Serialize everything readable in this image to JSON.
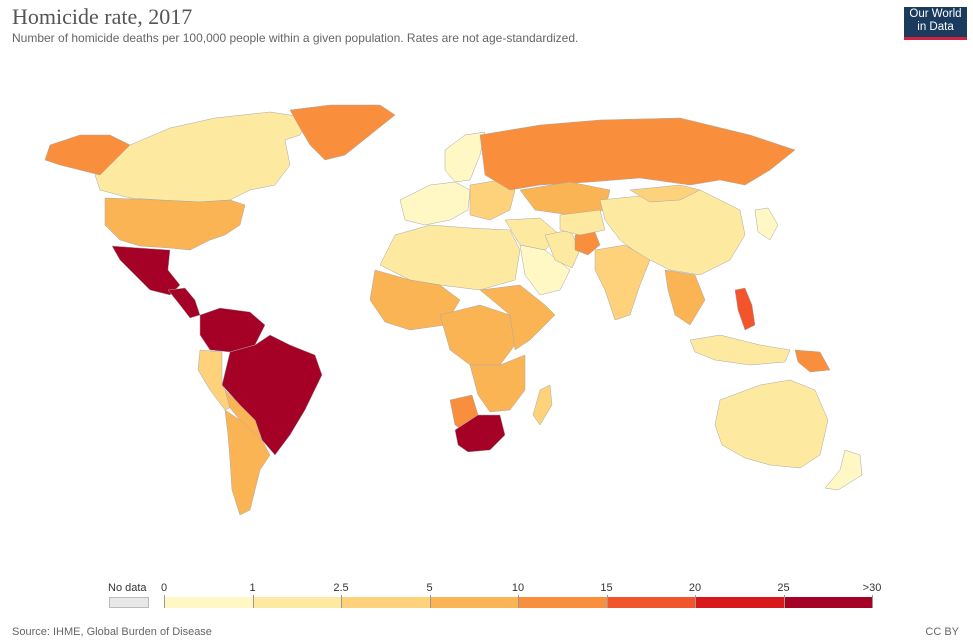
{
  "header": {
    "title": "Homicide rate, 2017",
    "subtitle": "Number of homicide deaths per 100,000 people within a given population. Rates are not age-standardized."
  },
  "logo": {
    "line1": "Our World",
    "line2": "in Data"
  },
  "legend": {
    "no_data_label": "No data",
    "no_data_color": "#e8e8e8",
    "ticks": [
      "0",
      "1",
      "2.5",
      "5",
      "10",
      "15",
      "20",
      "25",
      ">30"
    ],
    "bins": [
      {
        "color": "#fff7c4"
      },
      {
        "color": "#fee9a0"
      },
      {
        "color": "#fdd27a"
      },
      {
        "color": "#fbb454"
      },
      {
        "color": "#f98f3c"
      },
      {
        "color": "#f2552b"
      },
      {
        "color": "#d7191c"
      },
      {
        "color": "#a50026"
      }
    ]
  },
  "regions": [
    {
      "name": "Canada",
      "bin": 1
    },
    {
      "name": "Alaska",
      "bin": 4
    },
    {
      "name": "Greenland",
      "bin": 4
    },
    {
      "name": "United States",
      "bin": 3
    },
    {
      "name": "Mexico",
      "bin": 7
    },
    {
      "name": "Central America",
      "bin": 7
    },
    {
      "name": "Venezuela / Colombia",
      "bin": 7
    },
    {
      "name": "Brazil",
      "bin": 7
    },
    {
      "name": "Peru",
      "bin": 2
    },
    {
      "name": "Bolivia / Paraguay",
      "bin": 3
    },
    {
      "name": "Argentina / Chile",
      "bin": 3
    },
    {
      "name": "Western Europe",
      "bin": 0
    },
    {
      "name": "Scandinavia",
      "bin": 0
    },
    {
      "name": "Eastern Europe",
      "bin": 2
    },
    {
      "name": "Russia",
      "bin": 4
    },
    {
      "name": "Kazakhstan",
      "bin": 3
    },
    {
      "name": "China",
      "bin": 1
    },
    {
      "name": "Mongolia",
      "bin": 2
    },
    {
      "name": "Middle East",
      "bin": 1
    },
    {
      "name": "Saudi Arabia",
      "bin": 0
    },
    {
      "name": "Iran",
      "bin": 1
    },
    {
      "name": "Afghanistan",
      "bin": 4
    },
    {
      "name": "India",
      "bin": 2
    },
    {
      "name": "Southeast Asia",
      "bin": 3
    },
    {
      "name": "Philippines",
      "bin": 5
    },
    {
      "name": "Indonesia",
      "bin": 1
    },
    {
      "name": "Papua New Guinea",
      "bin": 4
    },
    {
      "name": "Australia",
      "bin": 1
    },
    {
      "name": "New Zealand",
      "bin": 0
    },
    {
      "name": "North Africa",
      "bin": 1
    },
    {
      "name": "West Africa",
      "bin": 3
    },
    {
      "name": "Central Africa",
      "bin": 3
    },
    {
      "name": "East Africa",
      "bin": 3
    },
    {
      "name": "Southern Africa",
      "bin": 3
    },
    {
      "name": "Namibia",
      "bin": 4
    },
    {
      "name": "South Africa",
      "bin": 7
    },
    {
      "name": "Madagascar",
      "bin": 2
    },
    {
      "name": "Japan / Korea",
      "bin": 0
    },
    {
      "name": "Central Asia",
      "bin": 1
    }
  ],
  "footer": {
    "source": "Source: IHME, Global Burden of Disease",
    "license": "CC BY"
  }
}
